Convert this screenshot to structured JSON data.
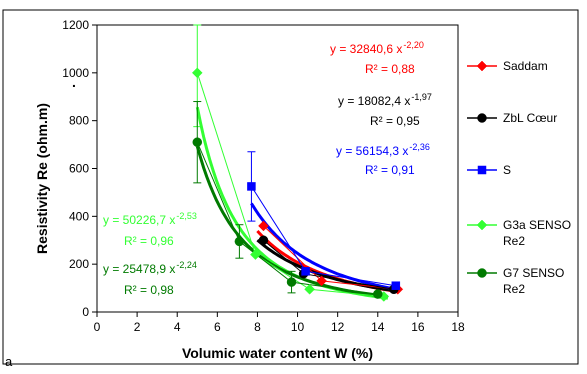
{
  "chart_data": {
    "type": "scatter",
    "panel_label": "a",
    "xlabel": "Volumic water content W (%)",
    "ylabel": "Resistivity Re (ohm.m)",
    "ylabel_suffix": ".",
    "xlim": [
      0,
      18
    ],
    "ylim": [
      0,
      1200
    ],
    "x_ticks": [
      "0",
      "2",
      "4",
      "6",
      "8",
      "10",
      "12",
      "14",
      "16",
      "18"
    ],
    "y_ticks": [
      "0",
      "200",
      "400",
      "600",
      "800",
      "1000",
      "1200"
    ],
    "grid": false,
    "legend_position": "right",
    "series": [
      {
        "name": "Saddam",
        "color": "#ff0000",
        "marker": "diamond",
        "x": [
          8.3,
          11.2,
          15.0
        ],
        "y": [
          360,
          130,
          95
        ],
        "error": [
          0,
          0,
          0
        ],
        "fit": {
          "a": 32840.6,
          "b": -2.2
        },
        "fit_range": [
          8.0,
          15.0
        ],
        "fit_equation": "y = 32840,6 x-2,20",
        "equation_main": "y = 32840,6 x",
        "equation_exp": "-2,20",
        "r2_label": "R² = 0,88"
      },
      {
        "name": "ZbL Cœur",
        "color": "#000000",
        "marker": "circle",
        "x": [
          8.3,
          10.3,
          14.8
        ],
        "y": [
          300,
          160,
          95
        ],
        "error": [
          0,
          0,
          0
        ],
        "fit": {
          "a": 18082.4,
          "b": -1.97
        },
        "fit_range": [
          8.0,
          15.0
        ],
        "equation_main": "y = 18082,4 x",
        "equation_exp": "-1,97",
        "r2_label": "R² = 0,95"
      },
      {
        "name": "S",
        "color": "#0000ff",
        "marker": "square",
        "x": [
          7.7,
          10.4,
          14.9
        ],
        "y": [
          525,
          170,
          110
        ],
        "error": [
          145,
          0,
          0
        ],
        "fit": {
          "a": 56154.3,
          "b": -2.36
        },
        "fit_range": [
          7.7,
          15.0
        ],
        "equation_main": "y = 56154,3 x",
        "equation_exp": "-2,36",
        "r2_label": "R² = 0,91"
      },
      {
        "name": "G3a SENSO Re2",
        "color": "#33ff33",
        "marker": "diamond",
        "x": [
          5.0,
          7.9,
          10.6,
          14.3
        ],
        "y": [
          1000,
          240,
          95,
          65
        ],
        "error": [
          225,
          0,
          0,
          0
        ],
        "fit": {
          "a": 50226.7,
          "b": -2.53
        },
        "fit_range": [
          5.0,
          14.5
        ],
        "equation_main": "y = 50226,7 x",
        "equation_exp": "-2,53",
        "r2_label": "R² = 0,96"
      },
      {
        "name": "G7 SENSO Re2",
        "color": "#007a00",
        "marker": "circle",
        "x": [
          5.0,
          7.1,
          9.7,
          14.0
        ],
        "y": [
          710,
          295,
          125,
          75
        ],
        "error": [
          170,
          70,
          45,
          0
        ],
        "fit": {
          "a": 25478.9,
          "b": -2.24
        },
        "fit_range": [
          5.0,
          14.5
        ],
        "equation_main": "y = 25478,9 x",
        "equation_exp": "-2,24",
        "r2_label": "R² = 0,98"
      }
    ]
  }
}
